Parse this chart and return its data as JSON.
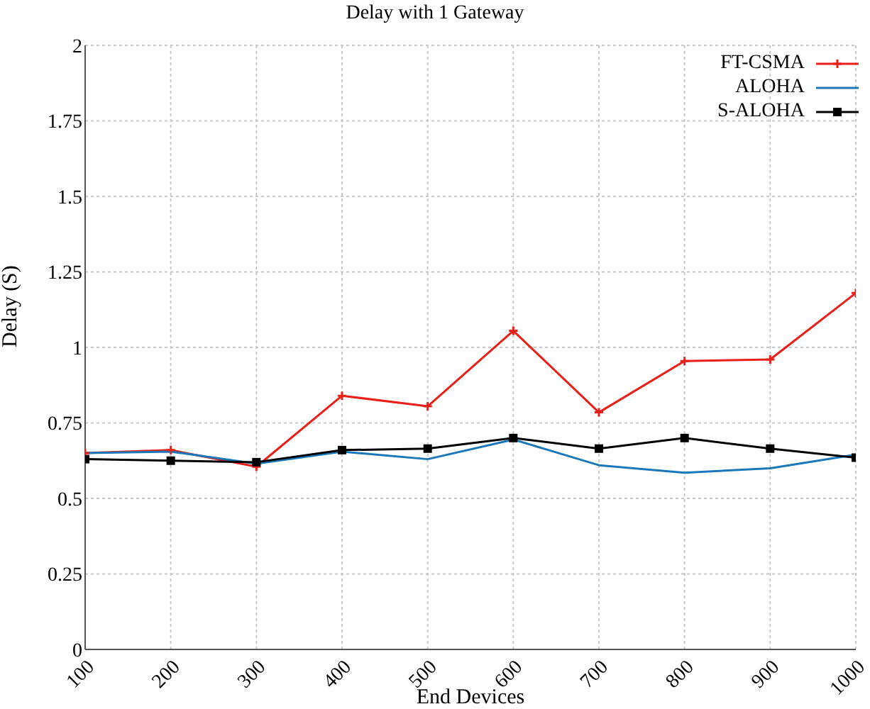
{
  "chart_data": {
    "type": "line",
    "title": "Delay with 1 Gateway",
    "xlabel": "End Devices",
    "ylabel": "Delay (S)",
    "x": [
      100,
      200,
      300,
      400,
      500,
      600,
      700,
      800,
      900,
      1000
    ],
    "xlim": [
      100,
      1000
    ],
    "xticks": [
      100,
      200,
      300,
      400,
      500,
      600,
      700,
      800,
      900,
      1000
    ],
    "ylim": [
      0,
      2
    ],
    "yticks": [
      0,
      0.25,
      0.5,
      0.75,
      1,
      1.25,
      1.5,
      1.75,
      2
    ],
    "grid": true,
    "legend": "top right",
    "line_style": "solid",
    "series": [
      {
        "name": "FT-CSMA",
        "color": "#e8201a",
        "marker": "cross",
        "values": [
          0.65,
          0.66,
          0.605,
          0.84,
          0.805,
          1.055,
          0.785,
          0.955,
          0.96,
          1.18
        ]
      },
      {
        "name": "ALOHA",
        "color": "#1a78b8",
        "marker": "none",
        "values": [
          0.65,
          0.655,
          0.615,
          0.655,
          0.63,
          0.695,
          0.61,
          0.585,
          0.6,
          0.645
        ]
      },
      {
        "name": "S-ALOHA",
        "color": "#000000",
        "marker": "square",
        "values": [
          0.63,
          0.625,
          0.62,
          0.66,
          0.665,
          0.7,
          0.665,
          0.7,
          0.665,
          0.635
        ]
      }
    ]
  }
}
